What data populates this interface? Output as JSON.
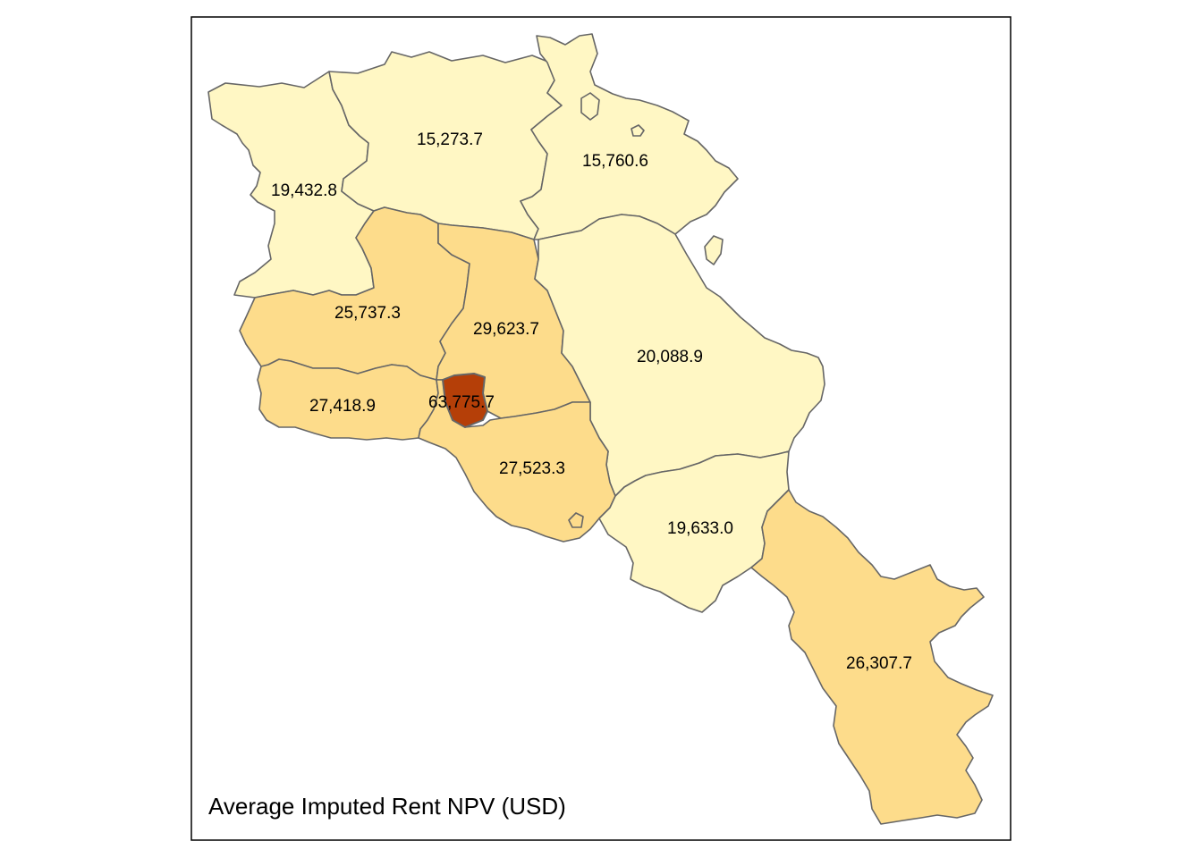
{
  "map": {
    "title": "Average Imputed Rent NPV (USD)",
    "colors": {
      "low": "#fff7c4",
      "mid": "#fddc8b",
      "high": "#b53f08",
      "border": "#666666",
      "frame": "#000000"
    },
    "regions": [
      {
        "id": "shirak",
        "value_label": "19,432.8",
        "value": 19432.8,
        "class": "low"
      },
      {
        "id": "lori",
        "value_label": "15,273.7",
        "value": 15273.7,
        "class": "low"
      },
      {
        "id": "tavush",
        "value_label": "15,760.6",
        "value": 15760.6,
        "class": "low"
      },
      {
        "id": "aragatsotn",
        "value_label": "25,737.3",
        "value": 25737.3,
        "class": "mid"
      },
      {
        "id": "kotayk",
        "value_label": "29,623.7",
        "value": 29623.7,
        "class": "mid"
      },
      {
        "id": "gegharkunik",
        "value_label": "20,088.9",
        "value": 20088.9,
        "class": "low"
      },
      {
        "id": "armavir",
        "value_label": "27,418.9",
        "value": 27418.9,
        "class": "mid"
      },
      {
        "id": "yerevan",
        "value_label": "63,775.7",
        "value": 63775.7,
        "class": "high"
      },
      {
        "id": "ararat",
        "value_label": "27,523.3",
        "value": 27523.3,
        "class": "mid"
      },
      {
        "id": "vayots-dzor",
        "value_label": "19,633.0",
        "value": 19633.0,
        "class": "low"
      },
      {
        "id": "syunik",
        "value_label": "26,307.7",
        "value": 26307.7,
        "class": "mid"
      }
    ]
  }
}
